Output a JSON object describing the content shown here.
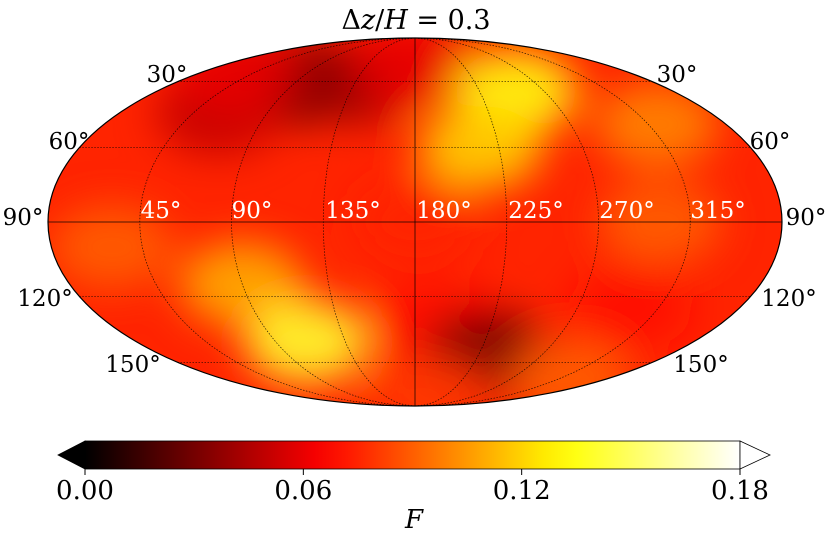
{
  "title": {
    "prefix": "Δ",
    "var1": "z",
    "slash": "/",
    "var2": "H",
    "rest": " = 0.3"
  },
  "chart_data": {
    "type": "heatmap",
    "projection": "mollweide",
    "title": "Δz/H = 0.3",
    "grid": true,
    "colormap": "hot",
    "latitude_labels": [
      "30°",
      "60°",
      "90°",
      "120°",
      "150°"
    ],
    "longitude_labels": [
      "45°",
      "90°",
      "135°",
      "180°",
      "225°",
      "270°",
      "315°"
    ],
    "colorbar": {
      "label": "F",
      "range": [
        0.0,
        0.18
      ],
      "ticks": [
        0.0,
        0.06,
        0.12,
        0.18
      ],
      "tick_labels": [
        "0.00",
        "0.06",
        "0.12",
        "0.18"
      ],
      "extend": "both"
    },
    "features": [
      {
        "lon": 90,
        "lat": 30,
        "F": 0.02
      },
      {
        "lon": 135,
        "lat": 30,
        "F": 0.04
      },
      {
        "lon": 60,
        "lat": 45,
        "F": 0.05
      },
      {
        "lon": 30,
        "lat": 25,
        "F": 0.06
      },
      {
        "lon": 180,
        "lat": 20,
        "F": 0.06
      },
      {
        "lon": 300,
        "lat": 90,
        "F": 0.09
      },
      {
        "lon": 30,
        "lat": 100,
        "F": 0.09
      },
      {
        "lon": 250,
        "lat": 35,
        "F": 0.135
      },
      {
        "lon": 215,
        "lat": 60,
        "F": 0.12
      },
      {
        "lon": 320,
        "lat": 50,
        "F": 0.1
      },
      {
        "lon": 90,
        "lat": 115,
        "F": 0.11
      },
      {
        "lon": 110,
        "lat": 140,
        "F": 0.14
      },
      {
        "lon": 190,
        "lat": 130,
        "F": 0.07
      },
      {
        "lon": 230,
        "lat": 145,
        "F": 0.03
      },
      {
        "lon": 300,
        "lat": 125,
        "F": 0.07
      },
      {
        "lon": 330,
        "lat": 160,
        "F": 0.09
      },
      {
        "lon": 200,
        "lat": 170,
        "F": 0.08
      },
      {
        "lon": 180,
        "lat": 90,
        "F": 0.075
      }
    ],
    "background_F": 0.075
  }
}
